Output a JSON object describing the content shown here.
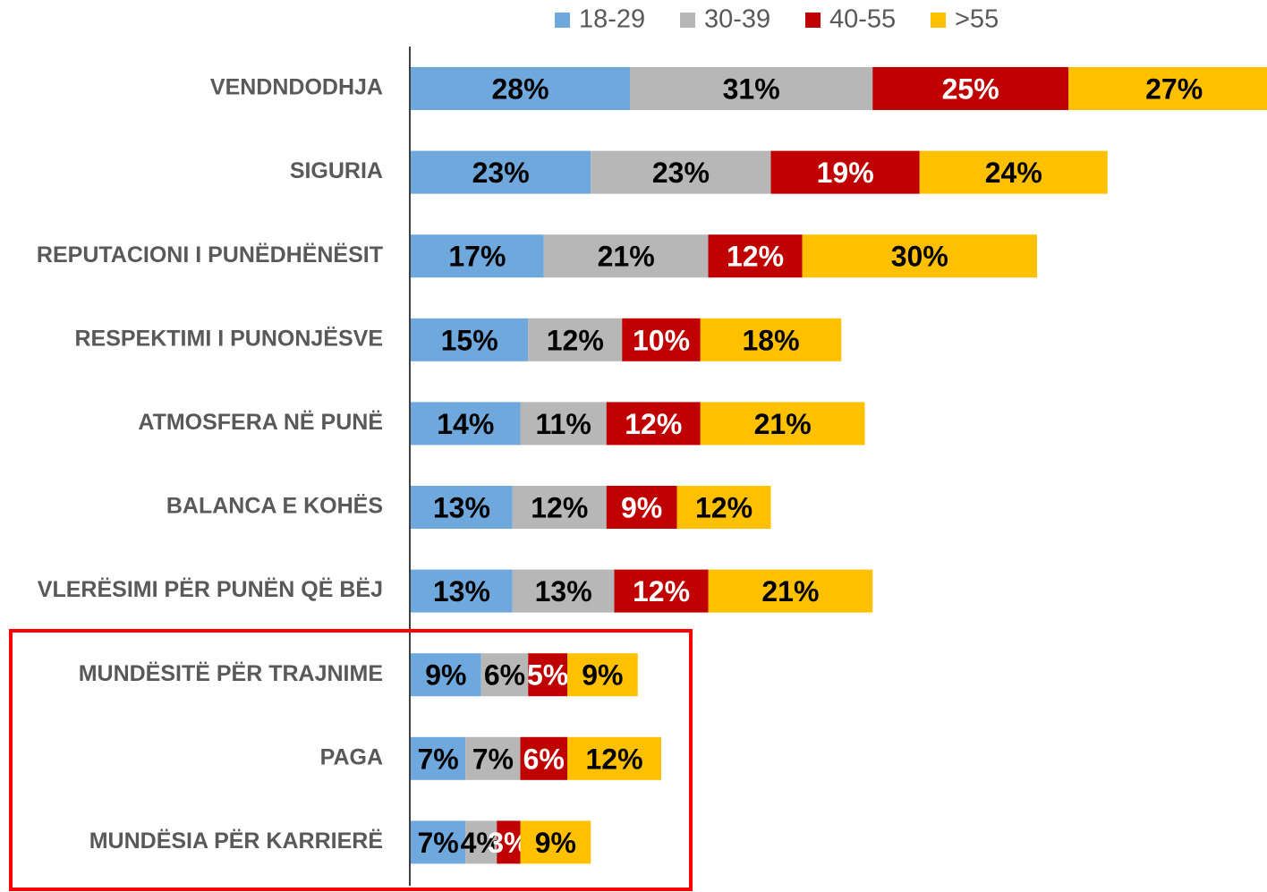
{
  "chart_data": {
    "type": "stacked-bar-horizontal",
    "categories": [
      "VENDNDODHJA",
      "SIGURIA",
      "REPUTACIONI I PUNËDHËNËSIT",
      "RESPEKTIMI I PUNONJËSVE",
      "ATMOSFERA NË PUNË",
      "BALANCA E KOHËS",
      "VLERËSIMI PËR PUNËN QË BËJ",
      "MUNDËSITË PËR TRAJNIME",
      "PAGA",
      "MUNDËSIA PËR KARRIERË"
    ],
    "series": [
      {
        "name": "18-29",
        "color": "#6fa8dc",
        "label_color": "#000000",
        "values": [
          28,
          23,
          17,
          15,
          14,
          13,
          13,
          9,
          7,
          7
        ],
        "value_labels": [
          "28%",
          "23%",
          "17%",
          "15%",
          "14%",
          "13%",
          "13%",
          "9%",
          "7%",
          "7%"
        ]
      },
      {
        "name": "30-39",
        "color": "#b7b7b7",
        "label_color": "#000000",
        "values": [
          31,
          23,
          21,
          12,
          11,
          12,
          13,
          6,
          7,
          4
        ],
        "value_labels": [
          "31%",
          "23%",
          "21%",
          "12%",
          "11%",
          "12%",
          "13%",
          "6%",
          "7%",
          "4%"
        ]
      },
      {
        "name": "40-55",
        "color": "#c00000",
        "label_color": "#ffffff",
        "values": [
          25,
          19,
          12,
          10,
          12,
          9,
          12,
          5,
          6,
          3
        ],
        "value_labels": [
          "25%",
          "19%",
          "12%",
          "10%",
          "12%",
          "9%",
          "12%",
          "5%",
          "6%",
          "3%"
        ]
      },
      {
        "name": ">55",
        "color": "#ffc000",
        "label_color": "#000000",
        "values": [
          27,
          24,
          30,
          18,
          21,
          12,
          21,
          9,
          12,
          9
        ],
        "value_labels": [
          "27%",
          "24%",
          "30%",
          "18%",
          "21%",
          "12%",
          "21%",
          "9%",
          "12%",
          "9%"
        ]
      }
    ],
    "legend": "top"
  }
}
